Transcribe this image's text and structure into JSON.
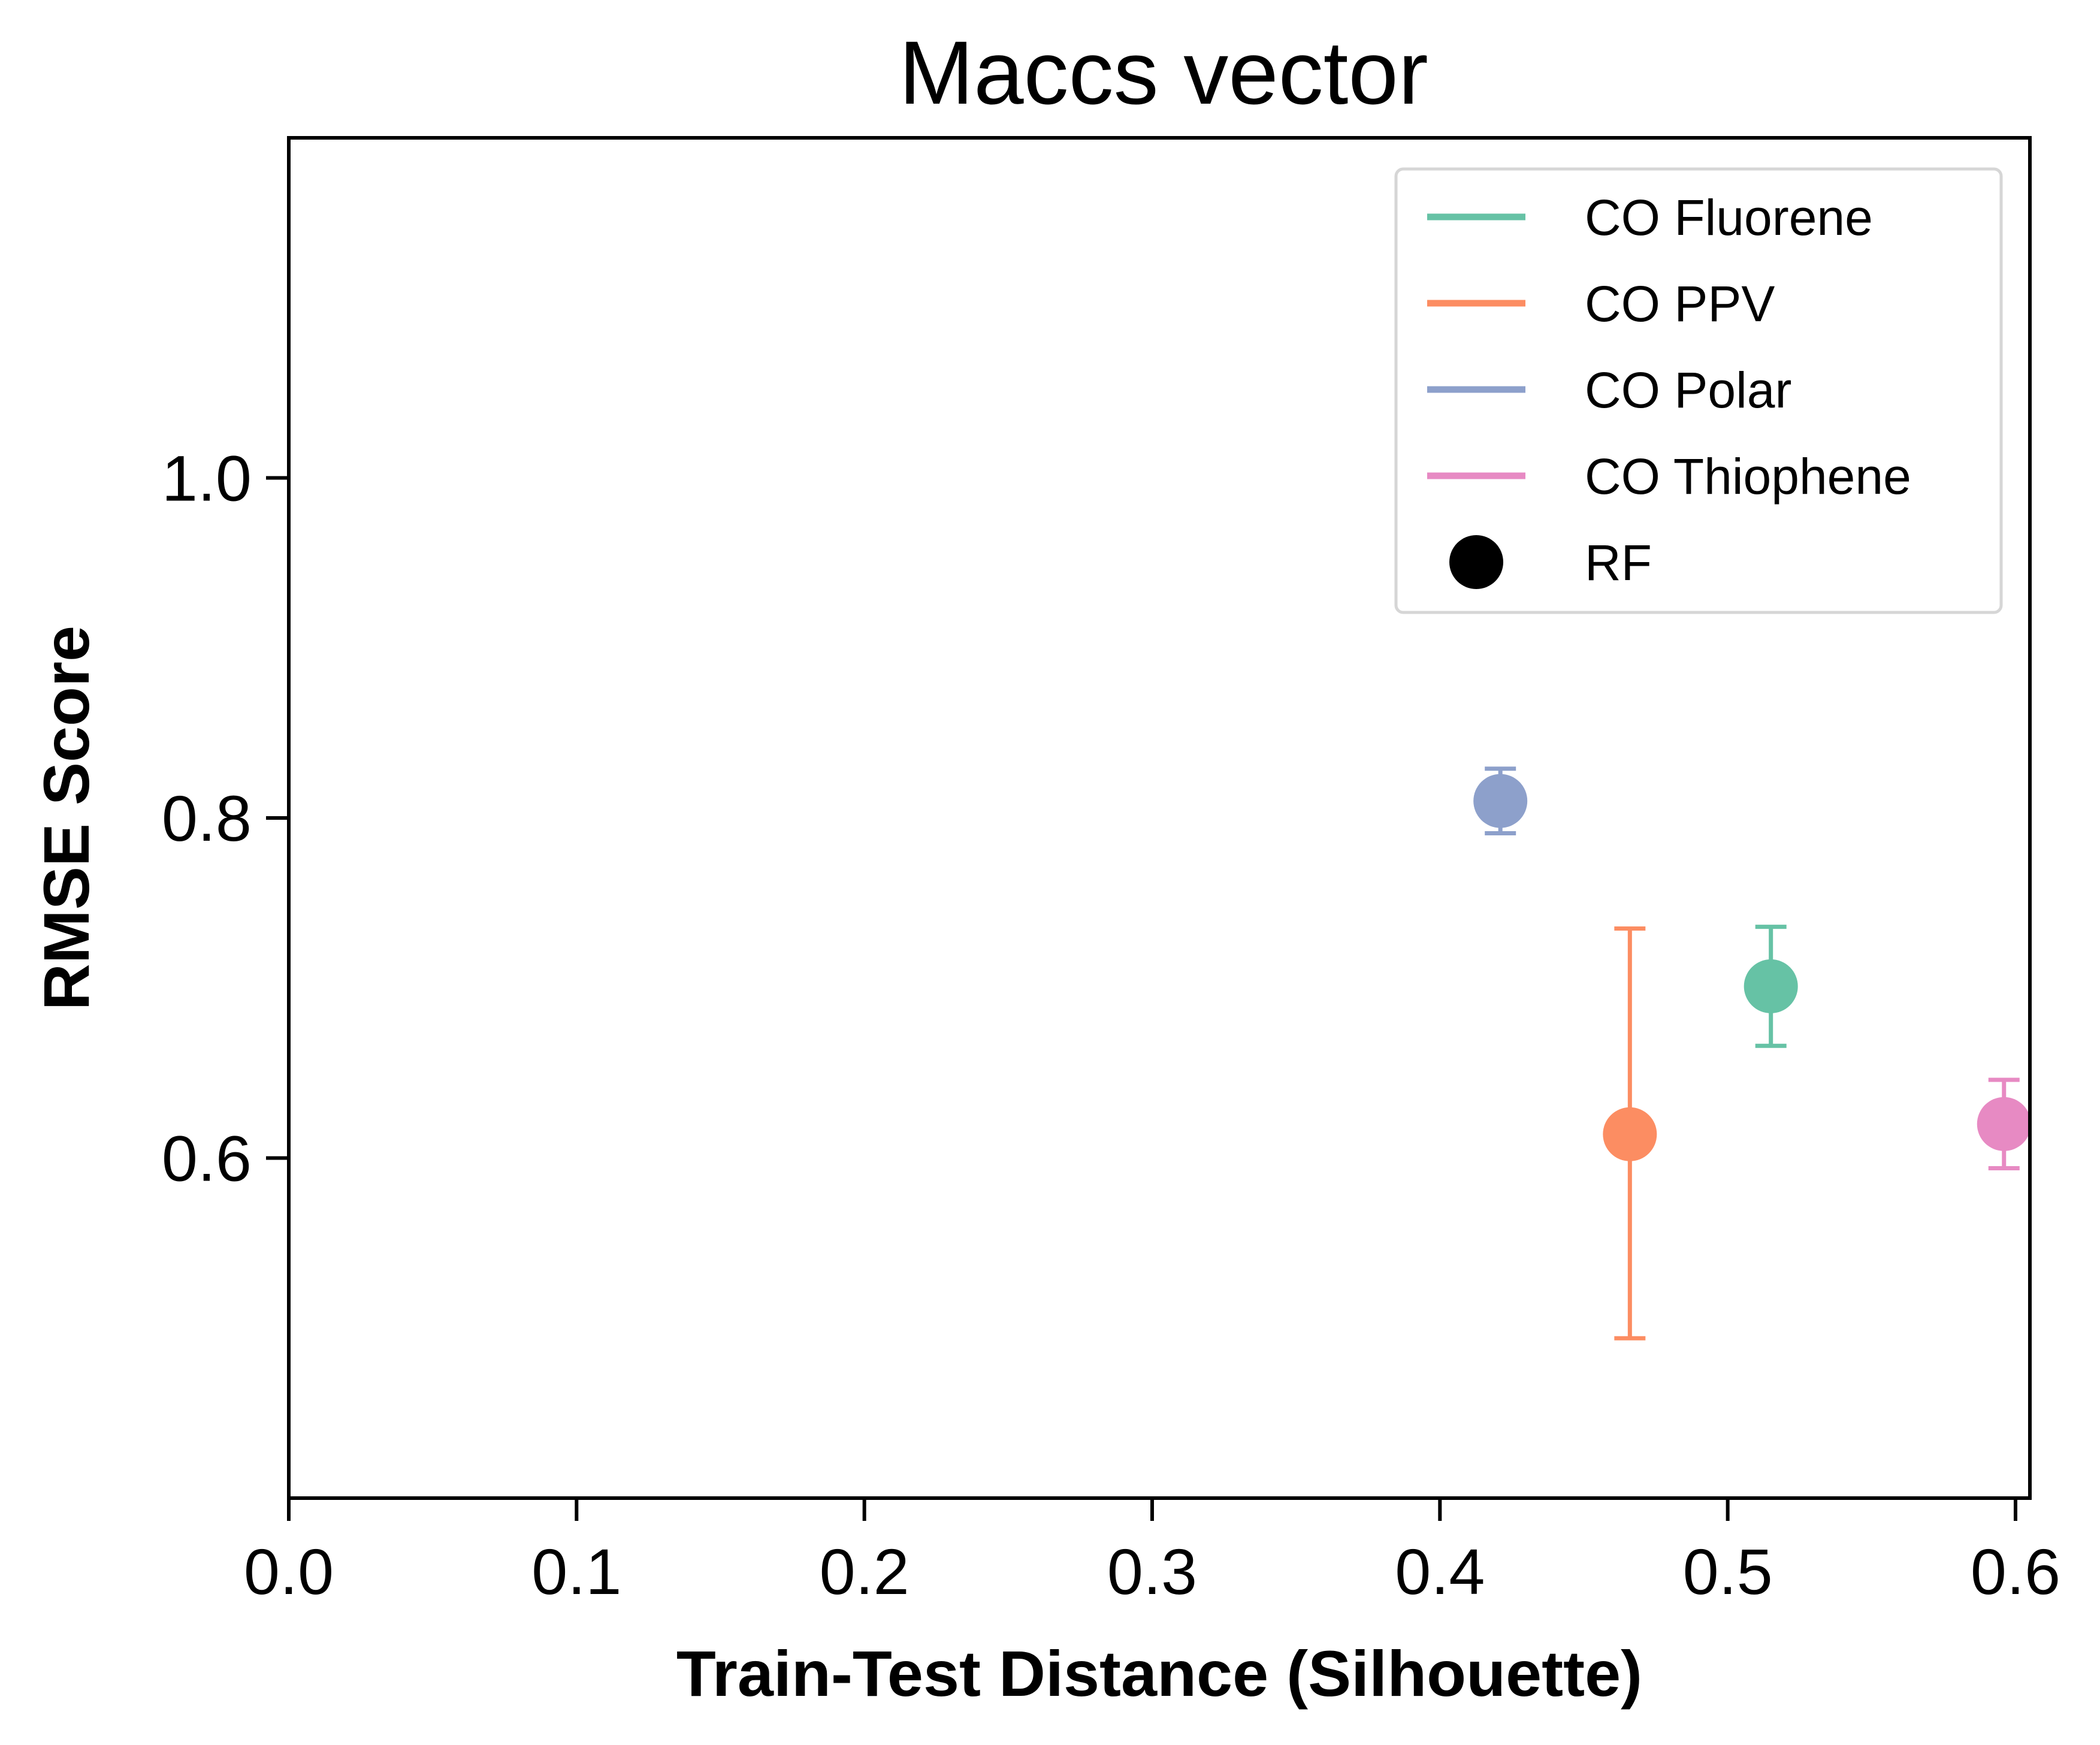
{
  "chart_data": {
    "type": "scatter",
    "title": "Maccs vector",
    "xlabel": "Train-Test Distance (Silhouette)",
    "ylabel": "RMSE Score",
    "xlim": [
      0.0,
      0.605
    ],
    "ylim": [
      0.4,
      1.2
    ],
    "xticks": [
      0.0,
      0.1,
      0.2,
      0.3,
      0.4,
      0.5,
      0.6
    ],
    "xtick_labels": [
      "0.0",
      "0.1",
      "0.2",
      "0.3",
      "0.4",
      "0.5",
      "0.6"
    ],
    "yticks": [
      0.6,
      0.8,
      1.0
    ],
    "ytick_labels": [
      "0.6",
      "0.8",
      "1.0"
    ],
    "grid": false,
    "legend_position": "top-right",
    "series": [
      {
        "name": "CO Fluorene",
        "color": "#66c2a5",
        "x": 0.515,
        "y": 0.701,
        "err_low": 0.666,
        "err_high": 0.736
      },
      {
        "name": "CO PPV",
        "color": "#fc8d62",
        "x": 0.466,
        "y": 0.614,
        "err_low": 0.494,
        "err_high": 0.735
      },
      {
        "name": "CO Polar",
        "color": "#8da0cb",
        "x": 0.421,
        "y": 0.81,
        "err_low": 0.791,
        "err_high": 0.829
      },
      {
        "name": "CO Thiophene",
        "color": "#e78ac3",
        "x": 0.596,
        "y": 0.62,
        "err_low": 0.594,
        "err_high": 0.646
      }
    ],
    "marker_legend": {
      "label": "RF",
      "marker": "circle",
      "color": "#000000"
    }
  }
}
